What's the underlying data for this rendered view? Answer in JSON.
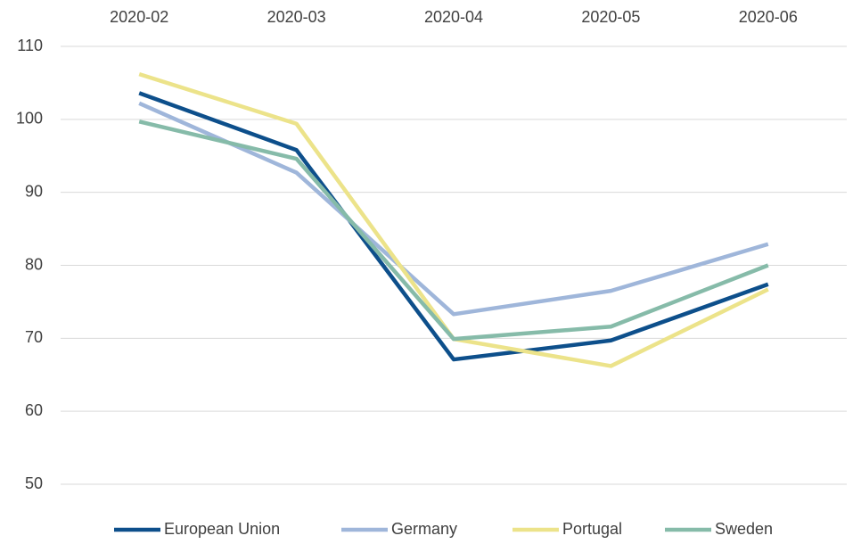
{
  "chart_data": {
    "type": "line",
    "categories": [
      "2020-02",
      "2020-03",
      "2020-04",
      "2020-05",
      "2020-06"
    ],
    "series": [
      {
        "name": "European Union",
        "color": "#0d4f8b",
        "values": [
          103.6,
          95.8,
          67.1,
          69.7,
          77.4
        ]
      },
      {
        "name": "Germany",
        "color": "#9fb6da",
        "values": [
          102.2,
          92.7,
          73.3,
          76.5,
          82.9
        ]
      },
      {
        "name": "Portugal",
        "color": "#ece38a",
        "values": [
          106.2,
          99.4,
          69.9,
          66.2,
          76.7
        ]
      },
      {
        "name": "Sweden",
        "color": "#86bba9",
        "values": [
          99.7,
          94.6,
          69.9,
          71.6,
          80.0
        ]
      }
    ],
    "ylim": [
      50,
      110
    ],
    "yticks": [
      50,
      60,
      70,
      80,
      90,
      100,
      110
    ],
    "grid": true,
    "legend": "bottom"
  }
}
